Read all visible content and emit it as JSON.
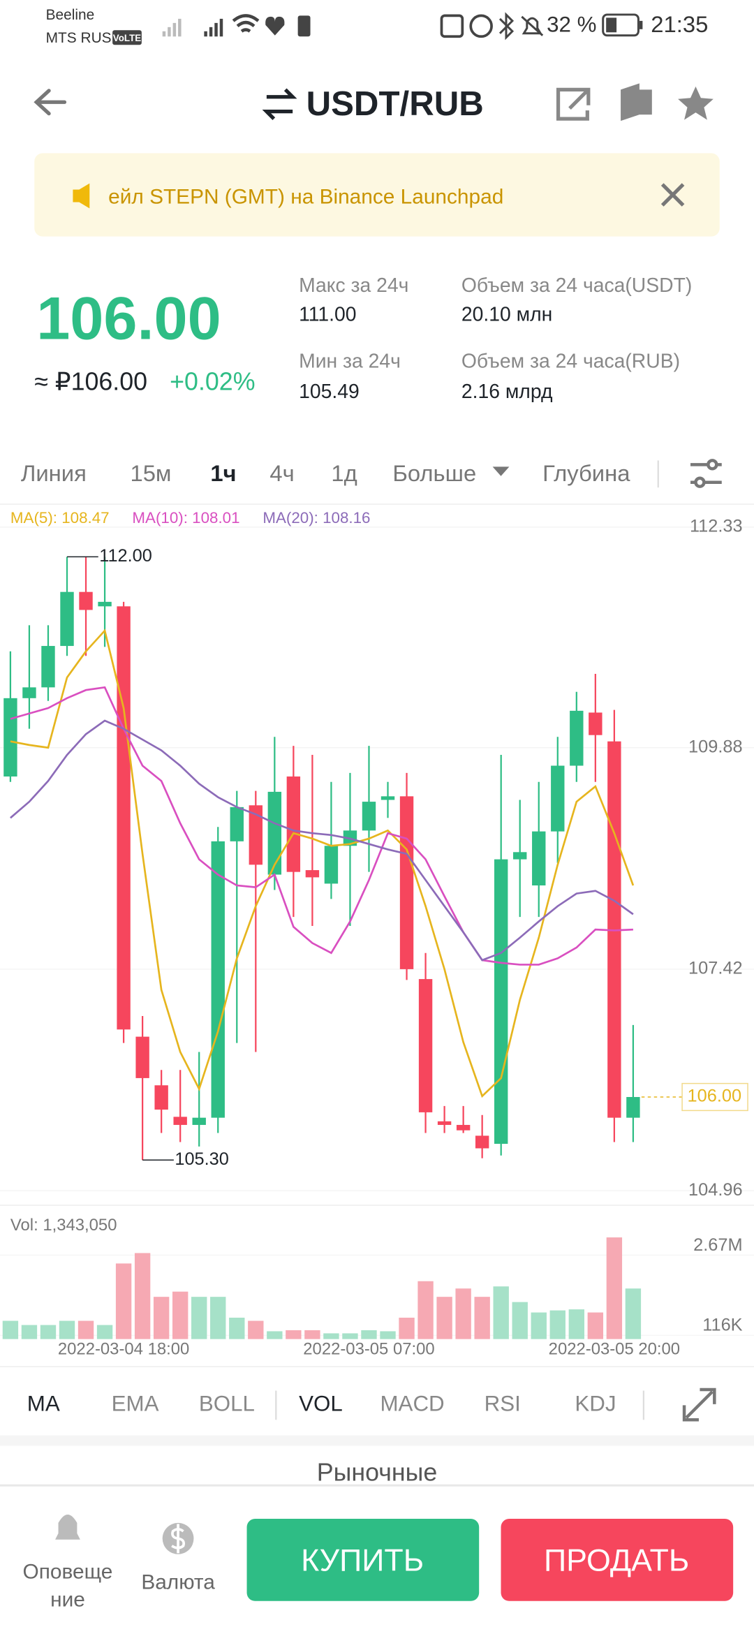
{
  "status_bar": {
    "carrier1": "Beeline",
    "carrier2": "MTS RUS",
    "volte": "VoLTE",
    "battery": "32 %",
    "time": "21:35"
  },
  "header": {
    "title": "USDT/RUB"
  },
  "banner": {
    "text": "ейл STEPN (GMT) на Binance Launchpad"
  },
  "ticker": {
    "price": "106.00",
    "approx": "≈ ₽106.00",
    "change": "+0.02%",
    "stats": [
      {
        "label": "Макс за 24ч",
        "value": "111.00"
      },
      {
        "label": "Объем за 24 часа(USDT)",
        "value": "20.10 млн"
      },
      {
        "label": "Мин за 24ч",
        "value": "105.49"
      },
      {
        "label": "Объем за 24 часа(RUB)",
        "value": "2.16 млрд"
      }
    ]
  },
  "tabs": [
    "Линия",
    "15м",
    "1ч",
    "4ч",
    "1д",
    "Больше",
    "Глубина"
  ],
  "chart_data": {
    "type": "candlestick",
    "categories": [
      null,
      null,
      null,
      null,
      null,
      null,
      "2022-03-04 18:00",
      null,
      null,
      null,
      null,
      null,
      null,
      null,
      null,
      null,
      null,
      null,
      null,
      "2022-03-05 07:00",
      null,
      null,
      null,
      null,
      null,
      null,
      null,
      null,
      null,
      null,
      null,
      null,
      "2022-03-05 20:00",
      null
    ],
    "candles": {
      "up_color": "#2ebd85",
      "down_color": "#f6465d",
      "open": [
        109.56,
        110.43,
        110.55,
        111.01,
        111.61,
        111.45,
        111.45,
        106.67,
        106.13,
        105.78,
        105.69,
        105.77,
        108.84,
        109.24,
        108.47,
        109.56,
        108.52,
        108.37,
        108.79,
        108.96,
        109.3,
        109.34,
        107.31,
        105.73,
        105.69,
        105.57,
        105.48,
        108.64,
        108.35,
        108.95,
        109.68,
        110.27,
        109.95,
        105.77
      ],
      "high": [
        110.95,
        111.24,
        111.24,
        112.0,
        112.0,
        112.0,
        111.5,
        106.9,
        106.3,
        106.3,
        106.5,
        109.0,
        109.4,
        109.4,
        110.0,
        109.9,
        109.8,
        109.5,
        109.6,
        109.9,
        109.5,
        109.6,
        107.6,
        105.9,
        105.9,
        105.8,
        109.8,
        109.3,
        109.5,
        110.0,
        110.5,
        110.7,
        110.3,
        106.8
      ],
      "low": [
        109.5,
        110.09,
        110.4,
        110.9,
        110.9,
        111.0,
        106.6,
        105.3,
        105.6,
        105.5,
        105.45,
        105.6,
        106.6,
        106.5,
        108.3,
        108.0,
        107.9,
        108.2,
        107.9,
        108.5,
        109.1,
        107.3,
        105.6,
        105.6,
        105.6,
        105.32,
        105.35,
        108.0,
        108.0,
        108.6,
        109.5,
        109.5,
        105.5,
        105.5
      ],
      "close": [
        110.43,
        110.55,
        111.01,
        111.61,
        111.41,
        111.5,
        106.75,
        106.21,
        105.86,
        105.69,
        105.77,
        108.84,
        109.22,
        108.58,
        109.39,
        108.5,
        108.44,
        108.79,
        108.96,
        109.28,
        109.34,
        107.42,
        105.83,
        105.69,
        105.63,
        105.43,
        108.64,
        108.72,
        108.95,
        109.68,
        110.29,
        110.02,
        105.77,
        106.0
      ]
    },
    "series": [
      {
        "name": "MA(5): 108.47",
        "color": "#e6b51e",
        "values": [
          109.95,
          109.91,
          109.88,
          110.66,
          110.95,
          111.18,
          110.32,
          108.7,
          107.19,
          106.5,
          106.09,
          106.73,
          107.54,
          108.12,
          108.58,
          108.93,
          108.87,
          108.79,
          108.81,
          108.87,
          108.96,
          108.75,
          108.12,
          107.42,
          106.61,
          106.01,
          106.21,
          107.08,
          107.77,
          108.58,
          109.28,
          109.45,
          108.93,
          108.35
        ]
      },
      {
        "name": "MA(10): 108.01",
        "color": "#d94fc0",
        "values": [
          110.2,
          110.26,
          110.32,
          110.43,
          110.52,
          110.55,
          110.09,
          109.68,
          109.51,
          109.04,
          108.64,
          108.47,
          108.35,
          108.33,
          108.47,
          107.89,
          107.71,
          107.6,
          107.95,
          108.41,
          108.93,
          108.87,
          108.64,
          108.23,
          107.83,
          107.52,
          107.49,
          107.47,
          107.47,
          107.54,
          107.66,
          107.86,
          107.85,
          107.86
        ]
      },
      {
        "name": "MA(20): 108.16",
        "color": "#8c6bb8",
        "values": [
          109.1,
          109.28,
          109.51,
          109.8,
          110.03,
          110.18,
          110.09,
          109.97,
          109.85,
          109.68,
          109.48,
          109.33,
          109.22,
          109.14,
          109.04,
          108.96,
          108.93,
          108.91,
          108.87,
          108.81,
          108.75,
          108.7,
          108.41,
          108.12,
          107.83,
          107.52,
          107.6,
          107.77,
          107.95,
          108.12,
          108.26,
          108.29,
          108.18,
          108.03
        ]
      }
    ],
    "ylim": [
      104.96,
      112.33
    ],
    "yticks": [
      104.96,
      107.42,
      109.88,
      112.33
    ],
    "grid": true,
    "annotations": [
      {
        "text": "112.00",
        "value": 112.0
      },
      {
        "text": "105.30",
        "value": 105.3
      }
    ],
    "last_price": {
      "value": 106.0,
      "label": "106.00",
      "color": "#e6b51e"
    },
    "volume": {
      "label": "Vol: 1,343,050",
      "up_color": "#a6e1c8",
      "down_color": "#f6a9b3",
      "values": [
        581000,
        448000,
        448000,
        581000,
        581000,
        448000,
        2407000,
        2739000,
        1345000,
        1511000,
        1345000,
        1345000,
        681000,
        581000,
        249000,
        282000,
        282000,
        183000,
        183000,
        282000,
        249000,
        681000,
        1843000,
        1345000,
        1610000,
        1345000,
        1677000,
        1179000,
        847000,
        913000,
        946000,
        847000,
        3237000,
        1610000
      ],
      "ylim": [
        0,
        3300000
      ],
      "yticks": [
        {
          "value": 116000,
          "label": "116K"
        },
        {
          "value": 2670000,
          "label": "2.67M"
        }
      ]
    }
  },
  "indicator_tabs": [
    "MA",
    "EMA",
    "BOLL",
    "VOL",
    "MACD",
    "RSI",
    "KDJ"
  ],
  "section_tab": "Рыночные",
  "bottom_bar": {
    "alerts": [
      "Оповеще",
      "ние"
    ],
    "currency": "Валюта",
    "buy": "КУПИТЬ",
    "sell": "ПРОДАТЬ"
  }
}
